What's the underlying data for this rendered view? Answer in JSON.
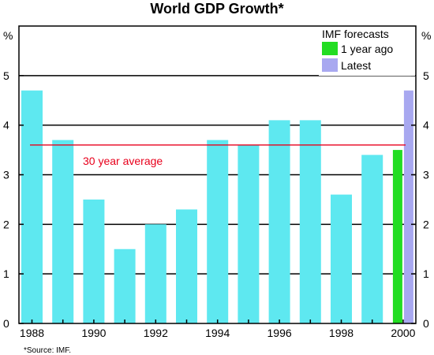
{
  "chart_data": {
    "type": "bar",
    "title": "World GDP Growth*",
    "ylabel": "%",
    "ylim": [
      0,
      6
    ],
    "yticks": [
      0,
      1,
      2,
      3,
      4,
      5
    ],
    "grid": true,
    "xticks": [
      "1988",
      "1990",
      "1992",
      "1994",
      "1996",
      "1998",
      "2000"
    ],
    "categories": [
      "1988",
      "1989",
      "1990",
      "1991",
      "1992",
      "1993",
      "1994",
      "1995",
      "1996",
      "1997",
      "1998",
      "1999",
      "2000"
    ],
    "series": [
      {
        "values": [
          4.7,
          3.7,
          2.5,
          1.5,
          2.0,
          2.3,
          3.7,
          3.6,
          4.1,
          4.1,
          2.6,
          3.4,
          null
        ],
        "color": "#5ee8f0"
      },
      {
        "name": "1 year ago",
        "values": [
          null,
          null,
          null,
          null,
          null,
          null,
          null,
          null,
          null,
          null,
          null,
          null,
          3.5
        ],
        "color": "#22dd22"
      },
      {
        "name": "Latest",
        "values": [
          null,
          null,
          null,
          null,
          null,
          null,
          null,
          null,
          null,
          null,
          null,
          null,
          4.7
        ],
        "color": "#a8a8f0"
      }
    ],
    "legend": {
      "title": "IMF forecasts",
      "position": "top-right"
    },
    "reference_line": {
      "label": "30 year average",
      "value": 3.6,
      "color": "#e8001c"
    },
    "source_note": "*Source:  IMF."
  }
}
